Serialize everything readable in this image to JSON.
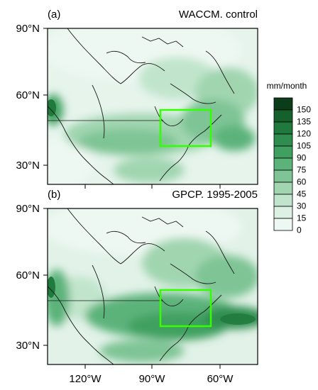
{
  "figure": {
    "panels": [
      {
        "tag": "(a)",
        "title": "WACCM. control",
        "lat_ticks": [
          "90°N",
          "60°N",
          "30°N"
        ]
      },
      {
        "tag": "(b)",
        "title": "GPCP. 1995-2005",
        "lat_ticks": [
          "90°N",
          "60°N",
          "30°N"
        ]
      }
    ],
    "lon_ticks": [
      "120°W",
      "90°W",
      "60°W"
    ],
    "box_color": "#33ff00",
    "colorbar": {
      "unit": "mm/month",
      "levels": [
        "150",
        "135",
        "120",
        "105",
        "90",
        "75",
        "60",
        "45",
        "30",
        "15",
        "0"
      ],
      "colors": [
        "#0b3d1a",
        "#16602c",
        "#217a3d",
        "#2f8e4f",
        "#40a060",
        "#5cb37a",
        "#7ec494",
        "#a0d5b0",
        "#c1e5cc",
        "#dcf1e4",
        "#eef8f3"
      ]
    }
  }
}
